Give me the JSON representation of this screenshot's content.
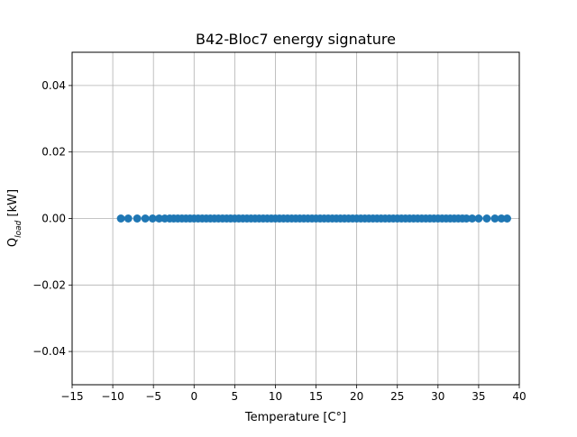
{
  "chart_data": {
    "type": "scatter",
    "title": "B42-Bloc7 energy signature",
    "xlabel": "Temperature [C°]",
    "ylabel_main": "Q",
    "ylabel_sub": "load",
    "ylabel_suffix": " [kW]",
    "xlim": [
      -15,
      40
    ],
    "ylim": [
      -0.05,
      0.05
    ],
    "xticks": [
      -15,
      -10,
      -5,
      0,
      5,
      10,
      15,
      20,
      25,
      30,
      35,
      40
    ],
    "xtick_labels": [
      "−15",
      "−10",
      "−5",
      "0",
      "5",
      "10",
      "15",
      "20",
      "25",
      "30",
      "35",
      "40"
    ],
    "yticks": [
      -0.04,
      -0.02,
      0.0,
      0.02,
      0.04
    ],
    "ytick_labels": [
      "−0.04",
      "−0.02",
      "0.00",
      "0.02",
      "0.04"
    ],
    "grid": true,
    "marker_color": "#1f77b4",
    "series": [
      {
        "x": [
          -9.0,
          -8.1,
          -7.0,
          -6.0,
          -5.1,
          -4.3,
          -3.6,
          -3.0,
          -2.5,
          -2.0,
          -1.5,
          -1.0,
          -0.5,
          0.0,
          0.5,
          1.0,
          1.5,
          2.0,
          2.5,
          3.0,
          3.5,
          4.0,
          4.5,
          5.0,
          5.5,
          6.0,
          6.5,
          7.0,
          7.5,
          8.0,
          8.5,
          9.0,
          9.5,
          10.0,
          10.5,
          11.0,
          11.5,
          12.0,
          12.5,
          13.0,
          13.5,
          14.0,
          14.5,
          15.0,
          15.5,
          16.0,
          16.5,
          17.0,
          17.5,
          18.0,
          18.5,
          19.0,
          19.5,
          20.0,
          20.5,
          21.0,
          21.5,
          22.0,
          22.5,
          23.0,
          23.5,
          24.0,
          24.5,
          25.0,
          25.5,
          26.0,
          26.5,
          27.0,
          27.5,
          28.0,
          28.5,
          29.0,
          29.5,
          30.0,
          30.5,
          31.0,
          31.5,
          32.0,
          32.5,
          33.0,
          33.5,
          34.2,
          35.0,
          36.0,
          37.0,
          37.8,
          38.5
        ],
        "y": 0.0
      }
    ]
  }
}
